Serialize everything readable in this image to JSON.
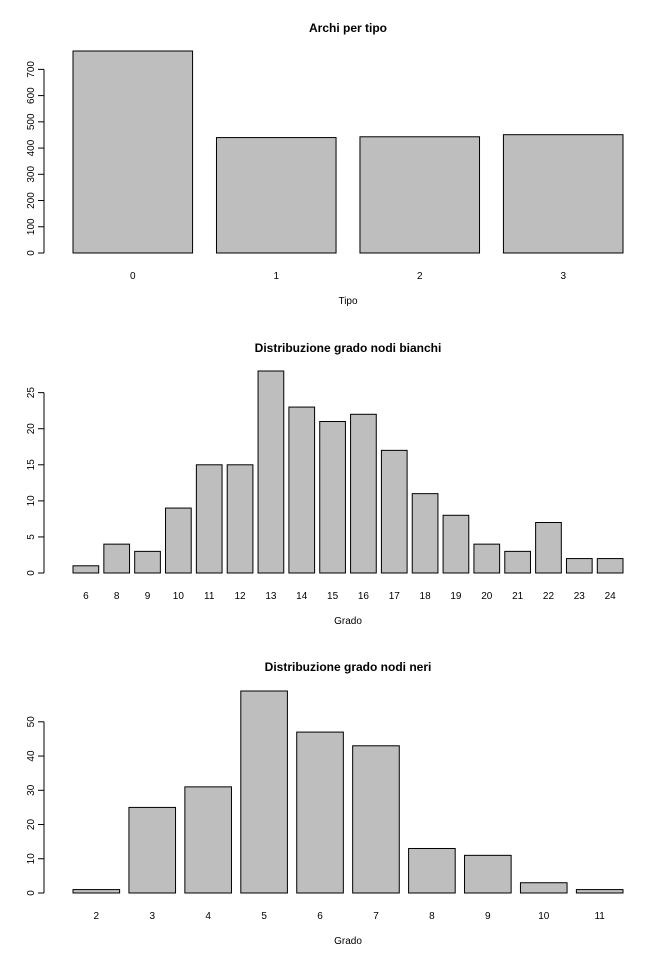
{
  "chart_data": [
    {
      "type": "bar",
      "title": "Archi per tipo",
      "xlabel": "Tipo",
      "ylabel": "",
      "categories": [
        "0",
        "1",
        "2",
        "3"
      ],
      "values": [
        770,
        440,
        443,
        451
      ],
      "ylim": [
        0,
        770
      ],
      "yticks": [
        0,
        100,
        200,
        300,
        400,
        500,
        600,
        700
      ],
      "ytick_rotation": "vertical",
      "bar_color": "#bebebe",
      "grid": false,
      "legend": "none"
    },
    {
      "type": "bar",
      "title": "Distribuzione grado nodi bianchi",
      "xlabel": "Grado",
      "ylabel": "",
      "categories": [
        "6",
        "8",
        "9",
        "10",
        "11",
        "12",
        "13",
        "14",
        "15",
        "16",
        "17",
        "18",
        "19",
        "20",
        "21",
        "22",
        "23",
        "24"
      ],
      "values": [
        1,
        4,
        3,
        9,
        15,
        15,
        28,
        23,
        21,
        22,
        17,
        11,
        8,
        4,
        3,
        7,
        2,
        2
      ],
      "ylim": [
        0,
        28
      ],
      "yticks": [
        0,
        5,
        10,
        15,
        20,
        25
      ],
      "ytick_rotation": "vertical",
      "bar_color": "#bebebe",
      "grid": false,
      "legend": "none"
    },
    {
      "type": "bar",
      "title": "Distribuzione grado nodi neri",
      "xlabel": "Grado",
      "ylabel": "",
      "categories": [
        "2",
        "3",
        "4",
        "5",
        "6",
        "7",
        "8",
        "9",
        "10",
        "11"
      ],
      "values": [
        1,
        25,
        31,
        59,
        47,
        43,
        13,
        11,
        3,
        1
      ],
      "ylim": [
        0,
        59
      ],
      "yticks": [
        0,
        10,
        20,
        30,
        40,
        50
      ],
      "ytick_rotation": "vertical",
      "bar_color": "#bebebe",
      "grid": false,
      "legend": "none"
    }
  ]
}
